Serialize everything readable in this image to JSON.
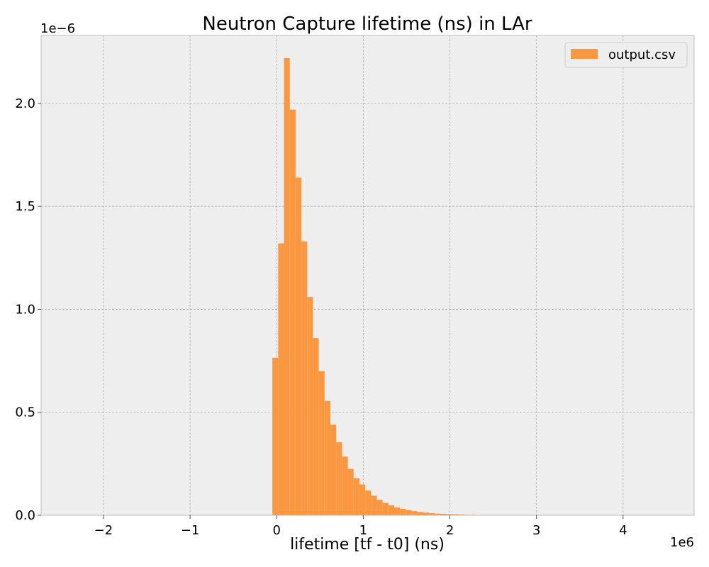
{
  "chart_data": {
    "type": "bar",
    "title": "Neutron Capture lifetime (ns) in LAr",
    "xlabel": "lifetime [tf - t0] (ns)",
    "ylabel": "",
    "x_offset_label": "1e6",
    "y_offset_label": "1e−6",
    "x_multiplier": 1000000,
    "y_multiplier": 1e-06,
    "xlim": [
      -2720000,
      4820000
    ],
    "ylim": [
      0,
      2.33
    ],
    "x_ticks": [
      -2,
      -1,
      0,
      1,
      2,
      3,
      4
    ],
    "x_tick_labels": [
      "−2",
      "−1",
      "0",
      "1",
      "2",
      "3",
      "4"
    ],
    "y_ticks": [
      0,
      0.5,
      1.0,
      1.5,
      2.0
    ],
    "y_tick_labels": [
      "0.0",
      "0.5",
      "1.0",
      "1.5",
      "2.0"
    ],
    "grid": true,
    "legend_position": "top-right",
    "bin_width": 67000,
    "bin_edges_start": -50000,
    "series": [
      {
        "name": "output.csv",
        "color": "#fa9841",
        "values": [
          0.765,
          1.32,
          2.22,
          1.97,
          1.64,
          1.33,
          1.06,
          0.86,
          0.7,
          0.555,
          0.44,
          0.355,
          0.285,
          0.225,
          0.18,
          0.15,
          0.12,
          0.095,
          0.075,
          0.06,
          0.048,
          0.038,
          0.031,
          0.025,
          0.02,
          0.016,
          0.013,
          0.01,
          0.008,
          0.007,
          0.006,
          0.005,
          0.004,
          0.003,
          0.0025,
          0.002,
          0.0015
        ]
      }
    ]
  }
}
